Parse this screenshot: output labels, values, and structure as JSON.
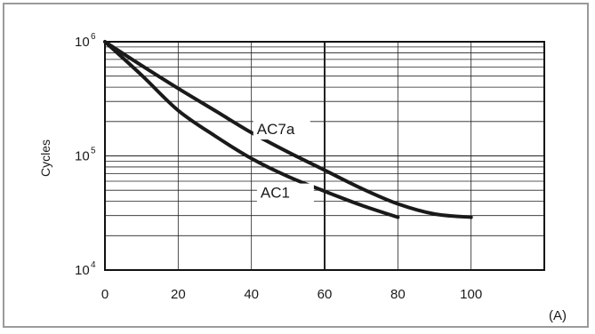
{
  "chart_data": {
    "type": "line",
    "title": "",
    "xlabel": "",
    "x_unit": "(A)",
    "ylabel": "Cycles",
    "y_scale": "log",
    "xlim": [
      0,
      120
    ],
    "ylim": [
      10000,
      1000000
    ],
    "x_ticks": [
      "0",
      "20",
      "40",
      "60",
      "80",
      "100"
    ],
    "y_ticks": [
      {
        "base": "10",
        "exp": "6"
      },
      {
        "base": "10",
        "exp": "5"
      },
      {
        "base": "10",
        "exp": "4"
      }
    ],
    "grid": true,
    "series": [
      {
        "name": "AC7a",
        "x": [
          0,
          10,
          20,
          30,
          40,
          50,
          60,
          70,
          80,
          90,
          100
        ],
        "y": [
          1000000,
          620000,
          390000,
          250000,
          160000,
          108000,
          75000,
          52000,
          38000,
          31000,
          29000
        ]
      },
      {
        "name": "AC1",
        "x": [
          0,
          10,
          20,
          30,
          40,
          50,
          60,
          70,
          80
        ],
        "y": [
          1000000,
          510000,
          250000,
          150000,
          95000,
          66000,
          49000,
          37000,
          29000
        ]
      }
    ]
  }
}
